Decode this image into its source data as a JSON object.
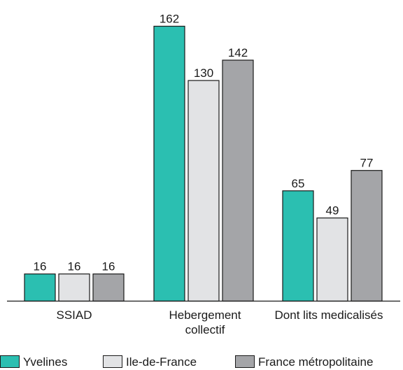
{
  "chart_data": {
    "type": "bar",
    "categories": [
      "SSIAD",
      "Hebergement collectif",
      "Dont lits medicalisés"
    ],
    "category_lines": [
      [
        "SSIAD"
      ],
      [
        "Hebergement",
        "collectif"
      ],
      [
        "Dont lits medicalisés"
      ]
    ],
    "series": [
      {
        "name": "Yvelines",
        "color": "#2bbfb1",
        "values": [
          16,
          162,
          65
        ]
      },
      {
        "name": "Ile-de-France",
        "color": "#e2e3e5",
        "values": [
          16,
          130,
          49
        ]
      },
      {
        "name": "France métropolitaine",
        "color": "#a4a5a8",
        "values": [
          16,
          142,
          77
        ]
      }
    ],
    "ylim": [
      0,
      170
    ],
    "grid": false,
    "legend_position": "bottom",
    "data_labels": true
  }
}
